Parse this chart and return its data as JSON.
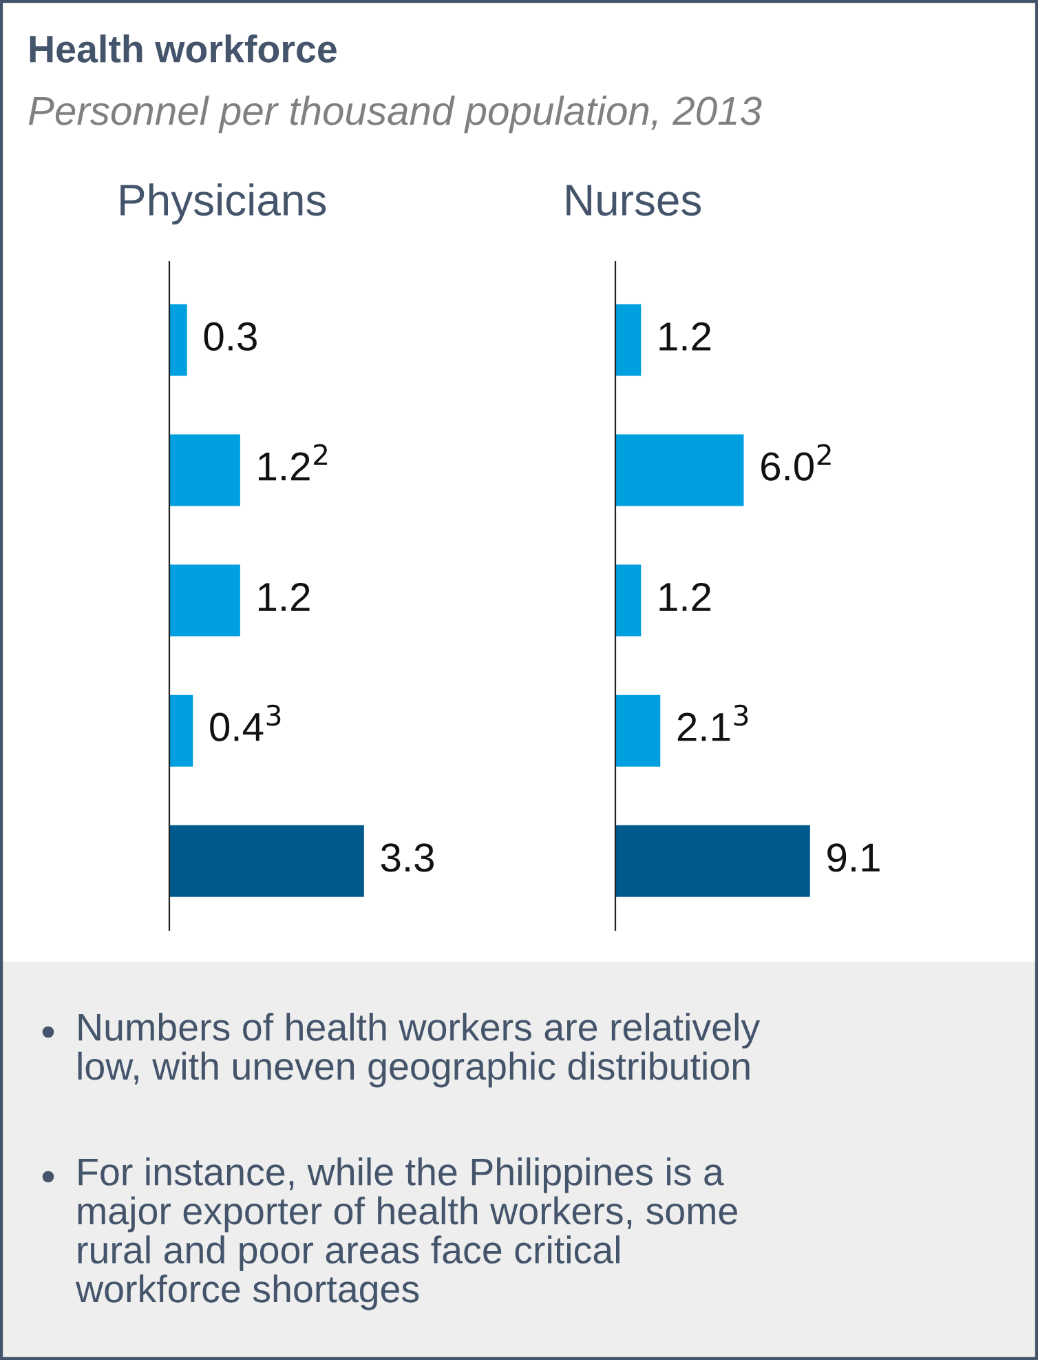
{
  "chart_data": [
    {
      "type": "bar",
      "orientation": "horizontal",
      "title": "Physicians",
      "categories": [
        null,
        null,
        null,
        null,
        null
      ],
      "values": [
        0.3,
        1.2,
        1.2,
        0.4,
        3.3
      ],
      "colors": [
        "#00a0e0",
        "#00a0e0",
        "#00a0e0",
        "#00a0e0",
        "#005a8b"
      ],
      "value_labels": [
        "0.3",
        "1.2$^{2}$",
        "1.2",
        "0.4$^{3}$",
        "3.3"
      ],
      "annotations": [
        "Health workforce",
        "Personnel per thousand population, 2013",
        "Numbers of health workers are relatively\nlow, with uneven geographic distribution",
        "For instance, while the Philippines is a\nmajor exporter of health workers, some\nrural and poor areas face critical\nworkforce shortages"
      ]
    },
    {
      "type": "bar",
      "orientation": "horizontal",
      "title": "Nurses",
      "categories": [
        null,
        null,
        null,
        null,
        null
      ],
      "values": [
        1.2,
        6.0,
        1.2,
        2.1,
        9.1
      ],
      "colors": [
        "#00a0e0",
        "#00a0e0",
        "#00a0e0",
        "#00a0e0",
        "#005a8b"
      ],
      "value_labels": [
        "1.2",
        "6.0$^{2}$",
        "1.2",
        "2.1$^{3}$",
        "9.1"
      ]
    }
  ]
}
